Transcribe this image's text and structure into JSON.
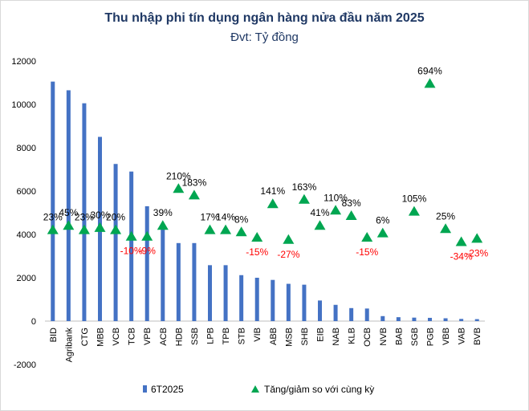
{
  "chart_data": {
    "type": "bar+scatter",
    "title": "Thu nhập phi tín dụng ngân hàng nửa đầu năm 2025",
    "subtitle": "Đvt: Tỷ đồng",
    "ylim": [
      -2000,
      12000
    ],
    "yticks": [
      -2000,
      0,
      2000,
      4000,
      6000,
      8000,
      10000,
      12000
    ],
    "categories": [
      "BID",
      "Agribank",
      "CTG",
      "MBB",
      "VCB",
      "TCB",
      "VPB",
      "ACB",
      "HDB",
      "SSB",
      "LPB",
      "TPB",
      "STB",
      "VIB",
      "ABB",
      "MSB",
      "SHB",
      "EIB",
      "NAB",
      "KLB",
      "OCB",
      "NVB",
      "BAB",
      "SGB",
      "PGB",
      "VBB",
      "VAB",
      "BVB"
    ],
    "series": [
      {
        "name": "6T2025",
        "kind": "bar",
        "color": "#4472c4",
        "values": [
          11050,
          10650,
          10050,
          8500,
          7250,
          6900,
          5300,
          4400,
          3600,
          3600,
          2580,
          2580,
          2120,
          2000,
          1900,
          1720,
          1680,
          950,
          750,
          600,
          580,
          230,
          180,
          160,
          150,
          130,
          100,
          90
        ]
      },
      {
        "name": "Tăng/giảm so với cùng kỳ",
        "kind": "marker",
        "color": "#00a651",
        "marker_y": [
          4200,
          4400,
          4200,
          4300,
          4200,
          3900,
          3900,
          4400,
          6100,
          5800,
          4200,
          4200,
          4100,
          3850,
          5400,
          3750,
          5600,
          4400,
          5100,
          4850,
          3850,
          4050,
          null,
          5050,
          10950,
          4250,
          3650,
          3800
        ],
        "labels": [
          "23%",
          "45%",
          "23%",
          "30%",
          "20%",
          "-10%",
          "-9%",
          "39%",
          "210%",
          "183%",
          "17%",
          "14%",
          "8%",
          "-15%",
          "141%",
          "-27%",
          "163%",
          "41%",
          "110%",
          "83%",
          "-15%",
          "6%",
          "",
          "105%",
          "694%",
          "25%",
          "-34%",
          "-23%"
        ]
      }
    ],
    "legend": [
      "6T2025",
      "Tăng/giảm so với cùng kỳ"
    ],
    "negative_label_color": "#ff0000",
    "positive_label_color": "#000000"
  }
}
